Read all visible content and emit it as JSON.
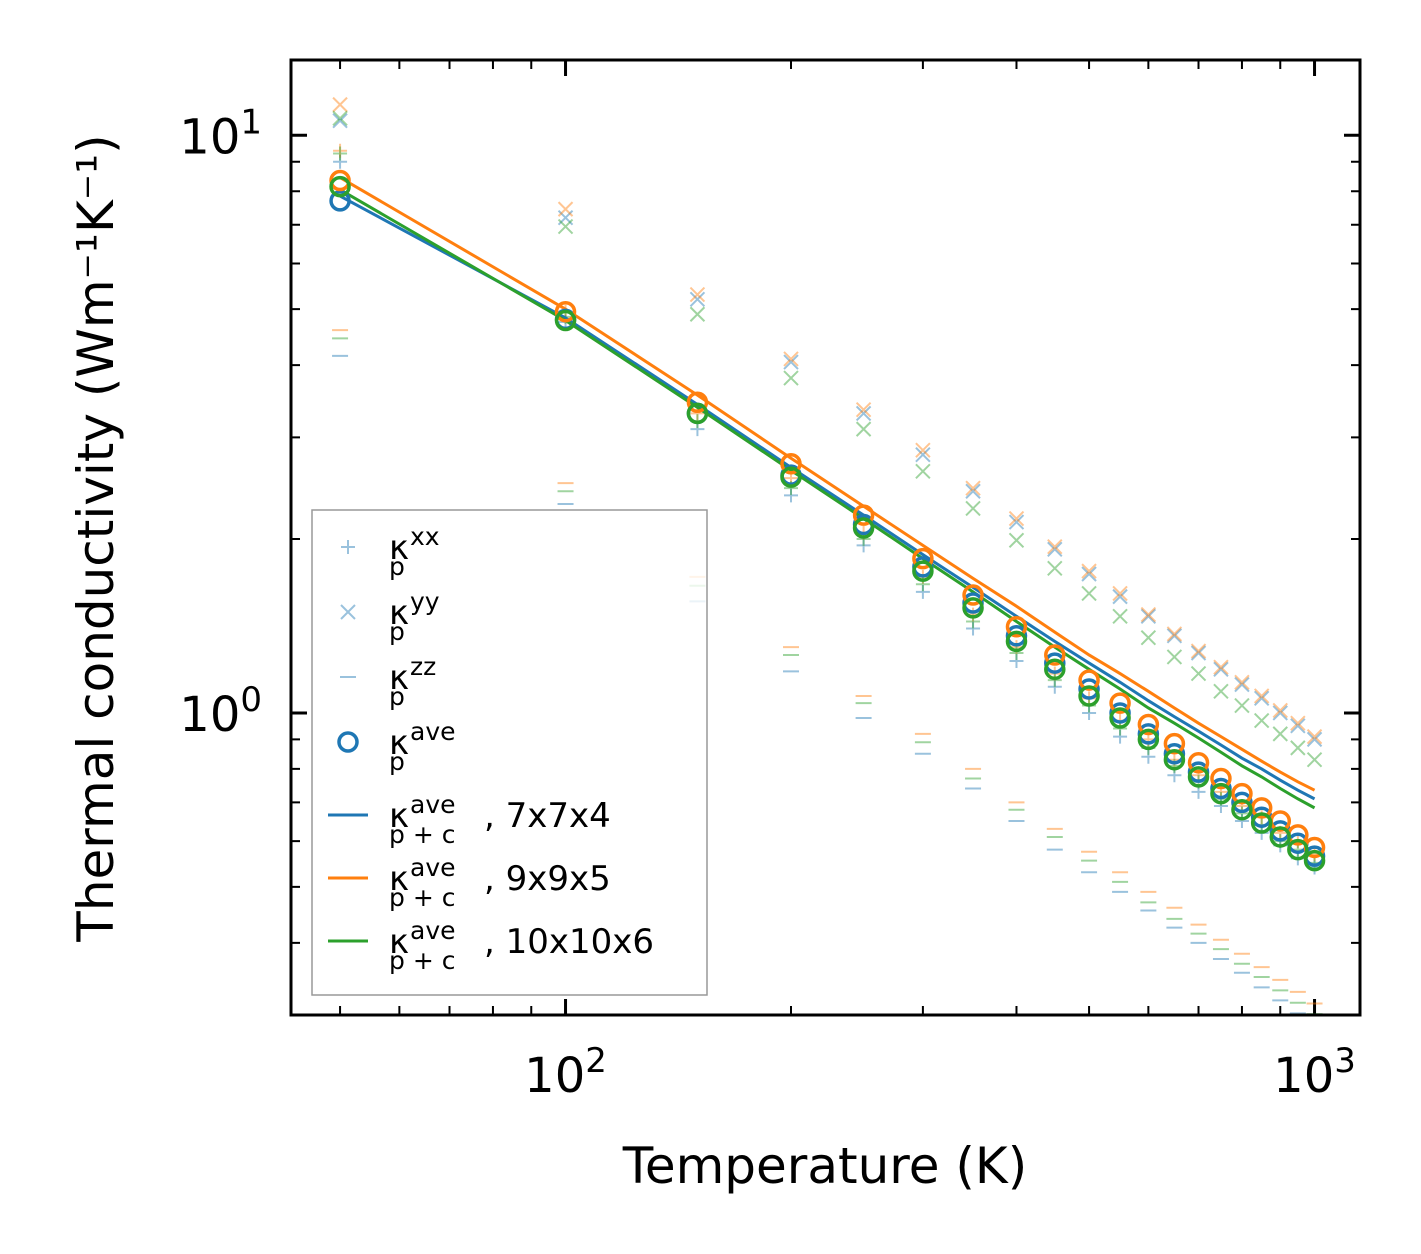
{
  "chart_data": {
    "type": "scatter",
    "title": "",
    "xlabel": "Temperature (K)",
    "ylabel": "Thermal conductivity (Wm⁻¹K⁻¹)",
    "xscale": "log",
    "yscale": "log",
    "xlim": [
      43,
      1150
    ],
    "ylim": [
      0.3,
      13.5
    ],
    "xtick_labels": [
      {
        "value": 100,
        "base": "10",
        "exp": "2"
      },
      {
        "value": 1000,
        "base": "10",
        "exp": "3"
      }
    ],
    "ytick_labels": [
      {
        "value": 1,
        "base": "10",
        "exp": "0"
      },
      {
        "value": 10,
        "base": "10",
        "exp": "1"
      }
    ],
    "legend_position": "lower-left",
    "colors": {
      "c7": "#1f77b4",
      "c9": "#ff7f0e",
      "c10": "#2ca02c"
    },
    "x": [
      50,
      100,
      150,
      200,
      250,
      300,
      350,
      400,
      450,
      500,
      550,
      600,
      650,
      700,
      750,
      800,
      850,
      900,
      950,
      1000
    ],
    "legend": [
      {
        "key": "xx",
        "base": "κ",
        "sup": "xx",
        "sub": "p",
        "tail": "",
        "marker": "plus"
      },
      {
        "key": "yy",
        "base": "κ",
        "sup": "yy",
        "sub": "p",
        "tail": "",
        "marker": "x"
      },
      {
        "key": "zz",
        "base": "κ",
        "sup": "zz",
        "sub": "p",
        "tail": "",
        "marker": "dash"
      },
      {
        "key": "ave",
        "base": "κ",
        "sup": "ave",
        "sub": "p",
        "tail": "",
        "marker": "circle"
      },
      {
        "key": "l7",
        "base": "κ",
        "sup": "ave",
        "sub": "p + c",
        "tail": ", 7x7x4",
        "marker": "line",
        "color": "#1f77b4"
      },
      {
        "key": "l9",
        "base": "κ",
        "sup": "ave",
        "sub": "p + c",
        "tail": ", 9x9x5",
        "marker": "line",
        "color": "#ff7f0e"
      },
      {
        "key": "l10",
        "base": "κ",
        "sup": "ave",
        "sub": "p + c",
        "tail": ", 10x10x6",
        "marker": "line",
        "color": "#2ca02c"
      }
    ],
    "series": [
      {
        "name": "xx 7x7x4",
        "component": "xx",
        "color": "#1f77b4",
        "marker": "plus",
        "alpha": 0.45,
        "values": [
          9.0,
          4.75,
          3.1,
          2.38,
          1.95,
          1.62,
          1.4,
          1.23,
          1.11,
          1.0,
          0.91,
          0.84,
          0.78,
          0.73,
          0.69,
          0.65,
          0.62,
          0.59,
          0.56,
          0.54
        ]
      },
      {
        "name": "xx 9x9x5",
        "component": "xx",
        "color": "#ff7f0e",
        "marker": "plus",
        "alpha": 0.45,
        "values": [
          9.4,
          4.95,
          3.3,
          2.55,
          2.05,
          1.72,
          1.48,
          1.3,
          1.17,
          1.06,
          0.97,
          0.9,
          0.83,
          0.78,
          0.73,
          0.69,
          0.66,
          0.62,
          0.6,
          0.57
        ]
      },
      {
        "name": "xx 10x10x6",
        "component": "xx",
        "color": "#2ca02c",
        "marker": "plus",
        "alpha": 0.45,
        "values": [
          9.3,
          4.85,
          3.2,
          2.45,
          2.0,
          1.67,
          1.44,
          1.27,
          1.14,
          1.03,
          0.94,
          0.87,
          0.81,
          0.76,
          0.71,
          0.67,
          0.64,
          0.6,
          0.58,
          0.55
        ]
      },
      {
        "name": "yy 7x7x4",
        "component": "yy",
        "color": "#1f77b4",
        "marker": "x",
        "alpha": 0.45,
        "values": [
          10.6,
          7.2,
          5.2,
          4.05,
          3.3,
          2.8,
          2.42,
          2.14,
          1.92,
          1.74,
          1.59,
          1.47,
          1.36,
          1.27,
          1.19,
          1.12,
          1.06,
          1.0,
          0.95,
          0.9
        ]
      },
      {
        "name": "yy 9x9x5",
        "component": "yy",
        "color": "#ff7f0e",
        "marker": "x",
        "alpha": 0.45,
        "values": [
          11.3,
          7.45,
          5.3,
          4.1,
          3.35,
          2.85,
          2.45,
          2.17,
          1.94,
          1.76,
          1.61,
          1.48,
          1.37,
          1.28,
          1.2,
          1.13,
          1.07,
          1.01,
          0.96,
          0.91
        ]
      },
      {
        "name": "yy 10x10x6",
        "component": "yy",
        "color": "#2ca02c",
        "marker": "x",
        "alpha": 0.45,
        "values": [
          10.7,
          6.95,
          4.9,
          3.8,
          3.1,
          2.62,
          2.26,
          1.99,
          1.78,
          1.61,
          1.47,
          1.35,
          1.25,
          1.17,
          1.09,
          1.03,
          0.97,
          0.92,
          0.87,
          0.83
        ]
      },
      {
        "name": "zz 7x7x4",
        "component": "zz",
        "color": "#1f77b4",
        "marker": "dash",
        "alpha": 0.45,
        "values": [
          4.15,
          2.3,
          1.56,
          1.18,
          0.98,
          0.85,
          0.74,
          0.65,
          0.58,
          0.53,
          0.49,
          0.455,
          0.425,
          0.4,
          0.375,
          0.355,
          0.335,
          0.318,
          0.302,
          0.288
        ]
      },
      {
        "name": "zz 9x9x5",
        "component": "zz",
        "color": "#ff7f0e",
        "marker": "dash",
        "alpha": 0.45,
        "values": [
          4.6,
          2.5,
          1.72,
          1.3,
          1.07,
          0.92,
          0.8,
          0.7,
          0.63,
          0.575,
          0.53,
          0.49,
          0.46,
          0.43,
          0.405,
          0.383,
          0.363,
          0.345,
          0.329,
          0.314
        ]
      },
      {
        "name": "zz 10x10x6",
        "component": "zz",
        "color": "#2ca02c",
        "marker": "dash",
        "alpha": 0.45,
        "values": [
          4.45,
          2.42,
          1.66,
          1.26,
          1.04,
          0.89,
          0.77,
          0.68,
          0.61,
          0.555,
          0.51,
          0.47,
          0.44,
          0.415,
          0.39,
          0.368,
          0.349,
          0.331,
          0.315,
          0.301
        ]
      },
      {
        "name": "ave 7x7x4",
        "component": "ave",
        "color": "#1f77b4",
        "marker": "circle",
        "alpha": 1,
        "values": [
          7.7,
          4.8,
          3.3,
          2.58,
          2.12,
          1.79,
          1.55,
          1.36,
          1.22,
          1.1,
          1.0,
          0.92,
          0.85,
          0.79,
          0.74,
          0.7,
          0.66,
          0.625,
          0.595,
          0.565
        ]
      },
      {
        "name": "ave 9x9x5",
        "component": "ave",
        "color": "#ff7f0e",
        "marker": "circle",
        "alpha": 1,
        "values": [
          8.35,
          4.95,
          3.45,
          2.7,
          2.2,
          1.85,
          1.6,
          1.41,
          1.26,
          1.14,
          1.04,
          0.955,
          0.885,
          0.82,
          0.77,
          0.725,
          0.685,
          0.65,
          0.615,
          0.585
        ]
      },
      {
        "name": "ave 10x10x6",
        "component": "ave",
        "color": "#2ca02c",
        "marker": "circle",
        "alpha": 1,
        "values": [
          8.15,
          4.78,
          3.3,
          2.56,
          2.09,
          1.76,
          1.52,
          1.33,
          1.19,
          1.07,
          0.98,
          0.9,
          0.83,
          0.775,
          0.725,
          0.68,
          0.645,
          0.61,
          0.58,
          0.555
        ]
      },
      {
        "name": "p+c 7x7x4",
        "component": "line",
        "color": "#1f77b4",
        "marker": "line",
        "alpha": 1,
        "values": [
          7.85,
          4.83,
          3.42,
          2.66,
          2.2,
          1.88,
          1.65,
          1.47,
          1.33,
          1.22,
          1.13,
          1.05,
          0.985,
          0.93,
          0.88,
          0.835,
          0.8,
          0.765,
          0.735,
          0.71
        ]
      },
      {
        "name": "p+c 9x9x5",
        "component": "line",
        "color": "#ff7f0e",
        "marker": "line",
        "alpha": 1,
        "values": [
          8.45,
          5.0,
          3.55,
          2.76,
          2.28,
          1.95,
          1.71,
          1.53,
          1.38,
          1.26,
          1.17,
          1.09,
          1.02,
          0.96,
          0.91,
          0.865,
          0.825,
          0.79,
          0.76,
          0.735
        ]
      },
      {
        "name": "p+c 10x10x6",
        "component": "line",
        "color": "#2ca02c",
        "marker": "line",
        "alpha": 1,
        "values": [
          8.05,
          4.78,
          3.38,
          2.63,
          2.17,
          1.85,
          1.62,
          1.44,
          1.3,
          1.19,
          1.1,
          1.02,
          0.96,
          0.905,
          0.855,
          0.81,
          0.775,
          0.74,
          0.71,
          0.685
        ]
      }
    ]
  }
}
